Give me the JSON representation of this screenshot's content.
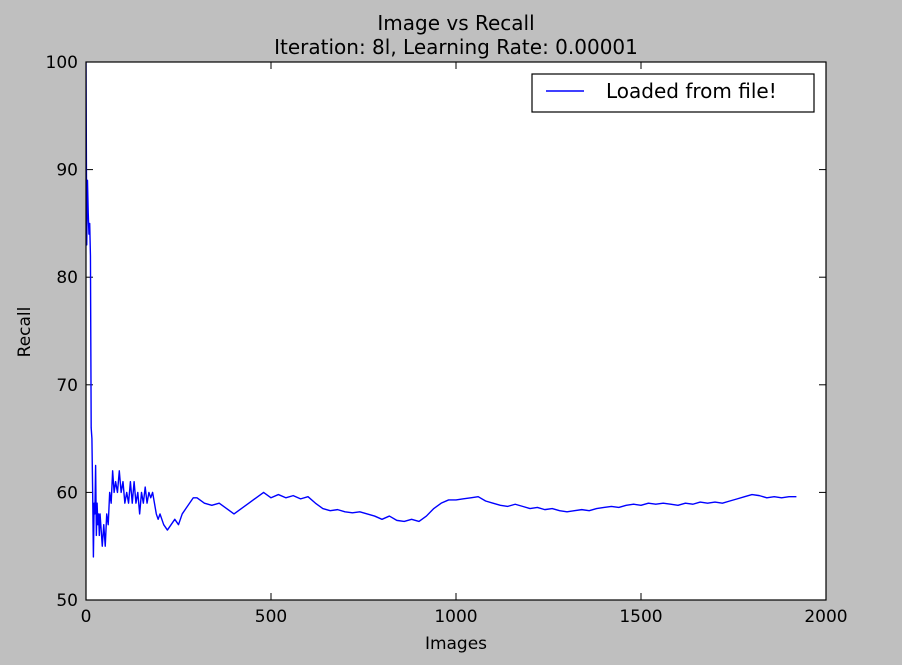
{
  "chart_data": {
    "type": "line",
    "title": "Image vs Recall",
    "subtitle": "Iteration: 8l, Learning Rate: 0.00001",
    "xlabel": "Images",
    "ylabel": "Recall",
    "xlim": [
      0,
      2000
    ],
    "ylim": [
      50,
      100
    ],
    "xticks": [
      "0",
      "500",
      "1000",
      "1500",
      "2000"
    ],
    "yticks": [
      "50",
      "60",
      "70",
      "80",
      "90",
      "100"
    ],
    "grid": false,
    "legend_position": "top-right",
    "series": [
      {
        "name": "Loaded from file!",
        "color": "#0000ff",
        "x": [
          0,
          2,
          4,
          6,
          8,
          10,
          12,
          14,
          16,
          18,
          20,
          22,
          24,
          26,
          28,
          30,
          32,
          34,
          36,
          38,
          40,
          44,
          48,
          52,
          56,
          60,
          64,
          68,
          72,
          76,
          80,
          85,
          90,
          95,
          100,
          105,
          110,
          115,
          120,
          125,
          130,
          135,
          140,
          145,
          150,
          155,
          160,
          165,
          170,
          175,
          180,
          185,
          190,
          195,
          200,
          210,
          220,
          230,
          240,
          250,
          260,
          270,
          280,
          290,
          300,
          320,
          340,
          360,
          380,
          400,
          420,
          440,
          460,
          480,
          500,
          520,
          540,
          560,
          580,
          600,
          620,
          640,
          660,
          680,
          700,
          720,
          740,
          760,
          780,
          800,
          820,
          840,
          860,
          880,
          900,
          920,
          940,
          960,
          980,
          1000,
          1020,
          1040,
          1060,
          1080,
          1100,
          1120,
          1140,
          1160,
          1180,
          1200,
          1220,
          1240,
          1260,
          1280,
          1300,
          1320,
          1340,
          1360,
          1380,
          1400,
          1420,
          1440,
          1460,
          1480,
          1500,
          1520,
          1540,
          1560,
          1580,
          1600,
          1620,
          1640,
          1660,
          1680,
          1700,
          1720,
          1740,
          1760,
          1780,
          1800,
          1820,
          1840,
          1860,
          1880,
          1900,
          1920
        ],
        "y": [
          100,
          83,
          89,
          86,
          84,
          85,
          82,
          66,
          65,
          60,
          54,
          59,
          58,
          62.5,
          56,
          59,
          57,
          58,
          56,
          58,
          57,
          55,
          57,
          55,
          58,
          57,
          60,
          59,
          62,
          60,
          61,
          60,
          62,
          60,
          61,
          59,
          60,
          59,
          61,
          59,
          61,
          59,
          60,
          58,
          60,
          59,
          60.5,
          59,
          60,
          59.5,
          60,
          59,
          58,
          57.5,
          58,
          57,
          56.5,
          57,
          57.5,
          57,
          58,
          58.5,
          59,
          59.5,
          59.5,
          59,
          58.8,
          59,
          58.5,
          58,
          58.5,
          59,
          59.5,
          60,
          59.5,
          59.8,
          59.5,
          59.7,
          59.4,
          59.6,
          59,
          58.5,
          58.3,
          58.4,
          58.2,
          58.1,
          58.2,
          58,
          57.8,
          57.5,
          57.8,
          57.4,
          57.3,
          57.5,
          57.3,
          57.8,
          58.5,
          59,
          59.3,
          59.3,
          59.4,
          59.5,
          59.6,
          59.2,
          59,
          58.8,
          58.7,
          58.9,
          58.7,
          58.5,
          58.6,
          58.4,
          58.5,
          58.3,
          58.2,
          58.3,
          58.4,
          58.3,
          58.5,
          58.6,
          58.7,
          58.6,
          58.8,
          58.9,
          58.8,
          59,
          58.9,
          59,
          58.9,
          58.8,
          59,
          58.9,
          59.1,
          59,
          59.1,
          59,
          59.2,
          59.4,
          59.6,
          59.8,
          59.7,
          59.5,
          59.6,
          59.5,
          59.6,
          59.6
        ]
      }
    ]
  }
}
